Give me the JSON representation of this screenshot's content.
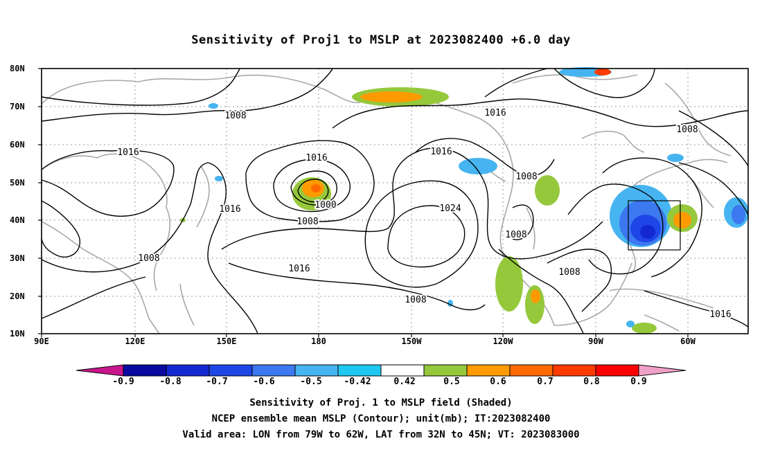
{
  "title": "Sensitivity of Proj1 to MSLP at 2023082400 +6.0 day",
  "lat_labels": [
    "80N",
    "70N",
    "60N",
    "50N",
    "40N",
    "30N",
    "20N",
    "10N"
  ],
  "lon_labels": [
    "90E",
    "120E",
    "150E",
    "180",
    "150W",
    "120W",
    "90W",
    "60W"
  ],
  "contour_labels": [
    "1008",
    "1016",
    "1016",
    "1008",
    "1016",
    "1000",
    "1008",
    "1016",
    "1008",
    "1008",
    "1016",
    "1024",
    "1008",
    "1016",
    "1008",
    "1008",
    "1016"
  ],
  "colorbar": {
    "labels": [
      "-0.9",
      "-0.8",
      "-0.7",
      "-0.6",
      "-0.5",
      "-0.42",
      "0.42",
      "0.5",
      "0.6",
      "0.7",
      "0.8",
      "0.9"
    ],
    "colors": [
      "#c8168c",
      "#0a0aa0",
      "#1428d2",
      "#1e46e6",
      "#3c78f0",
      "#46b4f0",
      "#1ec8f0",
      "#ffffff",
      "#96c83c",
      "#ff9a00",
      "#ff6a00",
      "#ff3a00",
      "#ff0000",
      "#f0a0c8"
    ]
  },
  "captions": {
    "line1": "Sensitivity of Proj. 1 to MSLP field (Shaded)",
    "line2": "NCEP ensemble mean MSLP (Contour); unit(mb); IT:2023082400",
    "line3": "Valid area: LON from 79W to 62W, LAT from 32N to 45N; VT: 2023083000"
  }
}
